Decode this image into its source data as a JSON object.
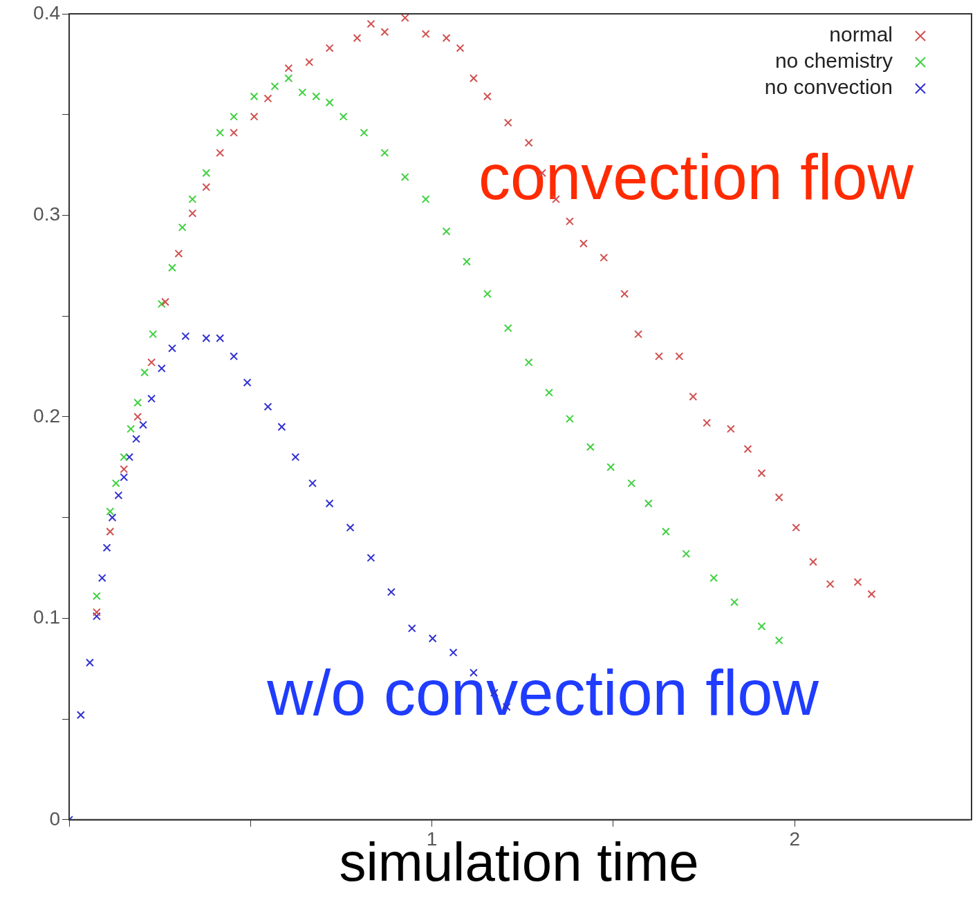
{
  "chart_data": {
    "type": "scatter",
    "xlabel": "simulation time",
    "xlim": [
      0,
      2.48
    ],
    "ylim": [
      0,
      0.4
    ],
    "xticks": [
      {
        "value": 0,
        "label": null
      },
      {
        "value": 0.5,
        "label": null
      },
      {
        "value": 1,
        "label": "1"
      },
      {
        "value": 1.5,
        "label": null
      },
      {
        "value": 2,
        "label": "2"
      }
    ],
    "yticks": [
      0,
      {
        "value": 0.05,
        "label": null
      },
      0.1,
      {
        "value": 0.15,
        "label": null
      },
      0.2,
      {
        "value": 0.25,
        "label": null
      },
      0.3,
      {
        "value": 0.35,
        "label": null
      },
      0.4
    ],
    "grid": false,
    "legend": "top right",
    "marker": "cross",
    "series": [
      {
        "name": "normal",
        "color": "#d05050",
        "x": [
          0.076,
          0.113,
          0.151,
          0.189,
          0.227,
          0.265,
          0.302,
          0.34,
          0.378,
          0.416,
          0.454,
          0.51,
          0.548,
          0.605,
          0.662,
          0.718,
          0.794,
          0.832,
          0.87,
          0.926,
          0.983,
          1.04,
          1.078,
          1.115,
          1.153,
          1.21,
          1.267,
          1.304,
          1.342,
          1.38,
          1.418,
          1.474,
          1.531,
          1.569,
          1.626,
          1.682,
          1.72,
          1.758,
          1.824,
          1.871,
          1.909,
          1.957,
          2.004,
          2.051,
          2.098,
          2.174,
          2.212
        ],
        "values": [
          0.103,
          0.143,
          0.174,
          0.2,
          0.227,
          0.257,
          0.281,
          0.301,
          0.314,
          0.331,
          0.341,
          0.349,
          0.358,
          0.373,
          0.376,
          0.383,
          0.388,
          0.395,
          0.391,
          0.398,
          0.39,
          0.388,
          0.383,
          0.368,
          0.359,
          0.346,
          0.336,
          0.321,
          0.308,
          0.297,
          0.286,
          0.279,
          0.261,
          0.241,
          0.23,
          0.23,
          0.21,
          0.197,
          0.194,
          0.184,
          0.172,
          0.16,
          0.145,
          0.128,
          0.117,
          0.118,
          0.112
        ]
      },
      {
        "name": "no chemistry",
        "color": "#40d040",
        "x": [
          0.076,
          0.113,
          0.129,
          0.151,
          0.17,
          0.189,
          0.208,
          0.231,
          0.255,
          0.284,
          0.312,
          0.34,
          0.378,
          0.416,
          0.454,
          0.51,
          0.567,
          0.605,
          0.643,
          0.681,
          0.718,
          0.756,
          0.813,
          0.87,
          0.926,
          0.983,
          1.04,
          1.096,
          1.153,
          1.21,
          1.267,
          1.323,
          1.38,
          1.437,
          1.493,
          1.55,
          1.597,
          1.645,
          1.701,
          1.777,
          1.834,
          1.909,
          1.957
        ],
        "values": [
          0.111,
          0.153,
          0.167,
          0.18,
          0.194,
          0.207,
          0.222,
          0.241,
          0.256,
          0.274,
          0.294,
          0.308,
          0.321,
          0.341,
          0.349,
          0.359,
          0.364,
          0.368,
          0.361,
          0.359,
          0.356,
          0.349,
          0.341,
          0.331,
          0.319,
          0.308,
          0.292,
          0.277,
          0.261,
          0.244,
          0.227,
          0.212,
          0.199,
          0.185,
          0.175,
          0.167,
          0.157,
          0.143,
          0.132,
          0.12,
          0.108,
          0.096,
          0.089
        ]
      },
      {
        "name": "no convection",
        "color": "#3030d0",
        "x": [
          0,
          0.032,
          0.057,
          0.076,
          0.091,
          0.104,
          0.119,
          0.136,
          0.151,
          0.166,
          0.185,
          0.204,
          0.227,
          0.255,
          0.284,
          0.321,
          0.378,
          0.416,
          0.454,
          0.491,
          0.548,
          0.586,
          0.624,
          0.671,
          0.718,
          0.775,
          0.832,
          0.888,
          0.945,
          1.002,
          1.059,
          1.115,
          1.172,
          1.206
        ],
        "values": [
          0,
          0.052,
          0.078,
          0.101,
          0.12,
          0.135,
          0.15,
          0.161,
          0.17,
          0.18,
          0.189,
          0.196,
          0.209,
          0.224,
          0.234,
          0.24,
          0.239,
          0.239,
          0.23,
          0.217,
          0.205,
          0.195,
          0.18,
          0.167,
          0.157,
          0.145,
          0.13,
          0.113,
          0.095,
          0.09,
          0.083,
          0.073,
          0.063,
          0.056
        ]
      }
    ],
    "annotations": [
      "convection flow",
      "w/o convection flow"
    ]
  }
}
